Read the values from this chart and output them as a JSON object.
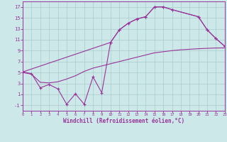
{
  "background_color": "#cce8e8",
  "grid_color": "#aacccc",
  "line_color": "#993399",
  "xlabel": "Windchill (Refroidissement éolien,°C)",
  "xlim": [
    0,
    23
  ],
  "ylim": [
    -2,
    18
  ],
  "yticks": [
    -1,
    1,
    3,
    5,
    7,
    9,
    11,
    13,
    15,
    17
  ],
  "xticks": [
    0,
    1,
    2,
    3,
    4,
    5,
    6,
    7,
    8,
    9,
    10,
    11,
    12,
    13,
    14,
    15,
    16,
    17,
    18,
    19,
    20,
    21,
    22,
    23
  ],
  "curve_jagged_x": [
    0,
    1,
    2,
    3,
    4,
    5,
    6,
    7,
    8,
    9,
    10,
    11,
    12,
    13,
    14,
    15,
    16,
    17,
    20,
    21,
    22,
    23
  ],
  "curve_jagged_y": [
    5.1,
    4.8,
    2.2,
    2.8,
    2.0,
    -0.8,
    1.1,
    -0.8,
    4.2,
    1.3,
    10.5,
    12.8,
    14.0,
    14.8,
    15.2,
    17.0,
    17.0,
    16.5,
    15.2,
    12.8,
    11.2,
    9.8
  ],
  "curve_smooth_x": [
    0,
    1,
    2,
    3,
    4,
    5,
    6,
    7,
    8,
    9,
    10,
    11,
    12,
    13,
    14,
    15,
    16,
    17,
    18,
    19,
    20,
    21,
    22,
    23
  ],
  "curve_smooth_y": [
    5.0,
    4.7,
    3.2,
    3.1,
    3.3,
    3.8,
    4.4,
    5.2,
    5.8,
    6.2,
    6.6,
    7.0,
    7.4,
    7.8,
    8.2,
    8.6,
    8.8,
    9.0,
    9.15,
    9.25,
    9.35,
    9.42,
    9.48,
    9.5
  ],
  "curve_top_x": [
    0,
    10,
    11,
    12,
    13,
    14,
    15,
    16,
    17,
    20,
    21,
    22,
    23
  ],
  "curve_top_y": [
    5.1,
    10.5,
    12.8,
    14.0,
    14.8,
    15.2,
    17.0,
    17.0,
    16.5,
    15.2,
    12.8,
    11.2,
    9.8
  ]
}
